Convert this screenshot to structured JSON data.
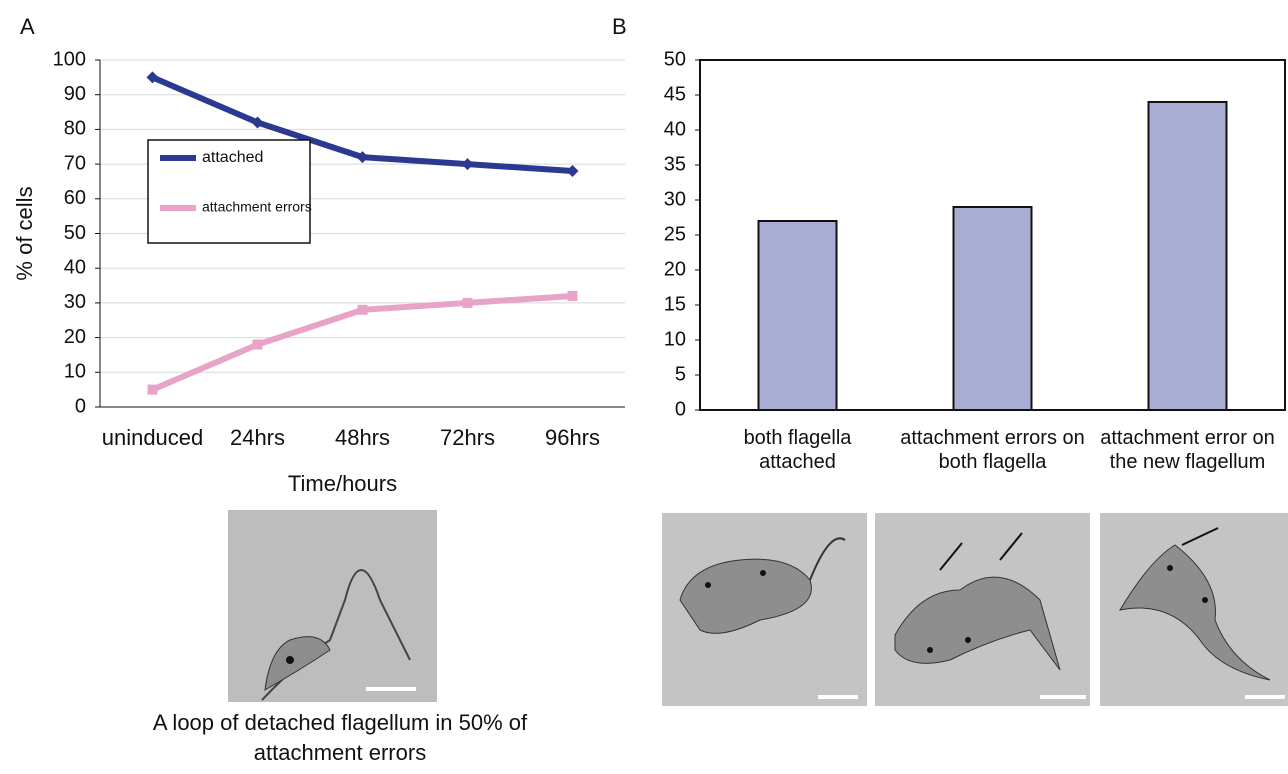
{
  "chart_data": [
    {
      "type": "line",
      "panel": "A",
      "x_label": "Time/hours",
      "y_label": "% of cells",
      "categories": [
        "uninduced",
        "24hrs",
        "48hrs",
        "72hrs",
        "96hrs"
      ],
      "series": [
        {
          "name": "attached",
          "color": "#2b3990",
          "values": [
            95,
            82,
            72,
            70,
            68
          ]
        },
        {
          "name": "attachment errors",
          "color": "#e8a3c9",
          "values": [
            5,
            18,
            28,
            30,
            32
          ]
        }
      ],
      "ylim": [
        0,
        100
      ],
      "yticks": [
        0,
        10,
        20,
        30,
        40,
        50,
        60,
        70,
        80,
        90,
        100
      ],
      "grid": true,
      "caption": "A loop of detached flagellum in 50% of attachment errors"
    },
    {
      "type": "bar",
      "panel": "B",
      "categories": [
        "both flagella attached",
        "attachment errors on both flagella",
        "attachment error on the new flagellum"
      ],
      "values": [
        27,
        29,
        44
      ],
      "color": "#aaadd3",
      "ylim": [
        0,
        50
      ],
      "yticks": [
        0,
        5,
        10,
        15,
        20,
        25,
        30,
        35,
        40,
        45,
        50
      ],
      "grid": false
    }
  ]
}
